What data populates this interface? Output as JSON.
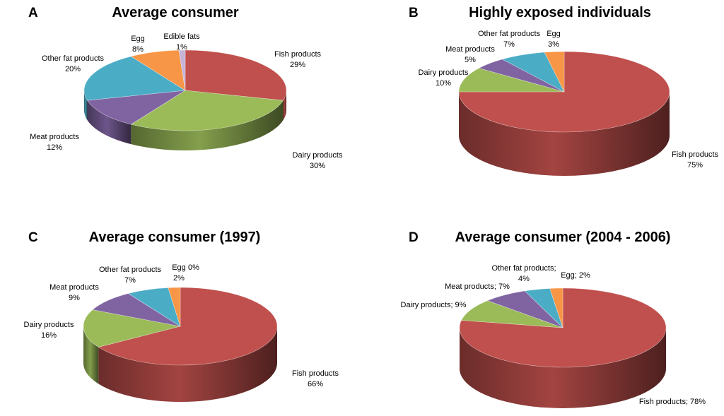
{
  "colors": {
    "fish": "#c0504d",
    "dairy": "#9bbb59",
    "meat": "#8064a2",
    "other_fat": "#4bacc6",
    "egg": "#f79646",
    "edible_fats": "#c6b4d8"
  },
  "chart_data": [
    {
      "type": "pie",
      "panel_letter": "A",
      "title": "Average consumer",
      "slices": [
        {
          "key": "fish",
          "label": "Fish products",
          "value": 29,
          "value_text": "29%"
        },
        {
          "key": "dairy",
          "label": "Dairy products",
          "value": 30,
          "value_text": "30%"
        },
        {
          "key": "meat",
          "label": "Meat products",
          "value": 12,
          "value_text": "12%"
        },
        {
          "key": "other_fat",
          "label": "Other fat products",
          "value": 20,
          "value_text": "20%"
        },
        {
          "key": "egg",
          "label": "Egg",
          "value": 8,
          "value_text": "8%"
        },
        {
          "key": "edible_fats",
          "label": "Edible fats",
          "value": 1,
          "value_text": "1%"
        }
      ]
    },
    {
      "type": "pie",
      "panel_letter": "B",
      "title": "Highly exposed individuals",
      "slices": [
        {
          "key": "fish",
          "label": "Fish products",
          "value": 75,
          "value_text": "75%"
        },
        {
          "key": "dairy",
          "label": "Dairy products",
          "value": 10,
          "value_text": "10%"
        },
        {
          "key": "meat",
          "label": "Meat products",
          "value": 5,
          "value_text": "5%"
        },
        {
          "key": "other_fat",
          "label": "Other fat products",
          "value": 7,
          "value_text": "7%"
        },
        {
          "key": "egg",
          "label": "Egg",
          "value": 3,
          "value_text": "3%"
        }
      ]
    },
    {
      "type": "pie",
      "panel_letter": "C",
      "title": "Average consumer (1997)",
      "slices": [
        {
          "key": "fish",
          "label": "Fish products",
          "value": 66,
          "value_text": "66%"
        },
        {
          "key": "dairy",
          "label": "Dairy products",
          "value": 16,
          "value_text": "16%"
        },
        {
          "key": "meat",
          "label": "Meat products",
          "value": 9,
          "value_text": "9%"
        },
        {
          "key": "other_fat",
          "label": "Other fat products",
          "value": 7,
          "value_text": "7%"
        },
        {
          "key": "egg",
          "label": "Egg",
          "value": 2,
          "value_text": "2%"
        },
        {
          "key": "edible_fats",
          "label": "",
          "value": 0,
          "value_text": "0%"
        }
      ]
    },
    {
      "type": "pie",
      "panel_letter": "D",
      "title": "Average consumer (2004 - 2006)",
      "slices": [
        {
          "key": "fish",
          "label": "Fish products; 78%",
          "value": 78,
          "value_text": ""
        },
        {
          "key": "dairy",
          "label": "Dairy products; 9%",
          "value": 9,
          "value_text": ""
        },
        {
          "key": "meat",
          "label": "Meat products; 7%",
          "value": 7,
          "value_text": ""
        },
        {
          "key": "other_fat",
          "label": "Other fat products;",
          "value": 4,
          "value_text": "4%"
        },
        {
          "key": "egg",
          "label": "Egg; 2%",
          "value": 2,
          "value_text": ""
        }
      ]
    }
  ]
}
